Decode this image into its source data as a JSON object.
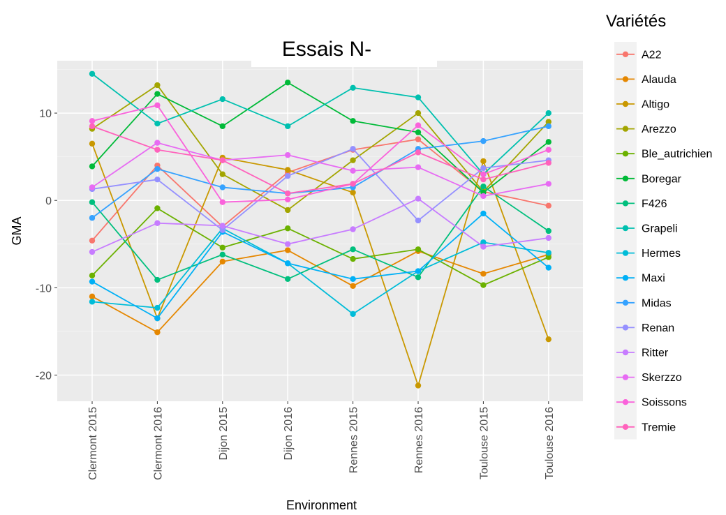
{
  "chart_data": {
    "type": "line",
    "title": "Essais N-",
    "xlabel": "Environment",
    "ylabel": "GMA",
    "legend_title": "Variétés",
    "legend_position": "right",
    "grid": true,
    "ylim": [
      -23,
      16
    ],
    "yticks": [
      -20,
      -10,
      0,
      10
    ],
    "categories": [
      "Clermont 2015",
      "Clermont 2016",
      "Dijon 2015",
      "Dijon 2016",
      "Rennes 2015",
      "Rennes 2016",
      "Toulouse 2015",
      "Toulouse 2016"
    ],
    "series": [
      {
        "name": "A22",
        "color": "#F8766D",
        "values": [
          -4.6,
          4.0,
          -3.0,
          3.2,
          5.8,
          7.0,
          1.0,
          -0.6
        ]
      },
      {
        "name": "Alauda",
        "color": "#E58700",
        "values": [
          -11.0,
          -15.1,
          -7.0,
          -5.7,
          -9.8,
          -5.8,
          -8.4,
          -6.2
        ]
      },
      {
        "name": "Altigo",
        "color": "#C99800",
        "values": [
          6.5,
          -13.5,
          4.9,
          3.5,
          0.9,
          -21.2,
          4.5,
          -15.9
        ]
      },
      {
        "name": "Arezzo",
        "color": "#A3A500",
        "values": [
          8.2,
          13.2,
          3.0,
          -1.1,
          4.6,
          10.0,
          1.0,
          9.0
        ]
      },
      {
        "name": "Ble_autrichien",
        "color": "#6BB100",
        "values": [
          -8.6,
          -0.9,
          -5.4,
          -3.2,
          -6.7,
          -5.6,
          -9.7,
          -6.5
        ]
      },
      {
        "name": "Boregar",
        "color": "#00BA38",
        "values": [
          3.9,
          12.2,
          8.5,
          13.5,
          9.1,
          7.8,
          0.9,
          6.7
        ]
      },
      {
        "name": "F426",
        "color": "#00BF7D",
        "values": [
          -0.2,
          -9.1,
          -6.2,
          -9.0,
          -5.6,
          -8.8,
          1.6,
          -3.5
        ]
      },
      {
        "name": "Grapeli",
        "color": "#00C0AF",
        "values": [
          14.5,
          8.8,
          11.6,
          8.5,
          12.9,
          11.8,
          3.0,
          10.0
        ]
      },
      {
        "name": "Hermes",
        "color": "#00BCD8",
        "values": [
          -11.6,
          -12.3,
          -3.2,
          -7.2,
          -13.0,
          -8.1,
          -4.8,
          -6.0
        ]
      },
      {
        "name": "Maxi",
        "color": "#00B0F6",
        "values": [
          -9.3,
          -13.5,
          -3.6,
          -7.2,
          -9.0,
          -8.1,
          -1.5,
          -7.7
        ]
      },
      {
        "name": "Midas",
        "color": "#35A2FF",
        "values": [
          -2.0,
          3.6,
          1.5,
          0.8,
          1.5,
          5.9,
          6.8,
          8.5
        ]
      },
      {
        "name": "Renan",
        "color": "#9590FF",
        "values": [
          1.3,
          2.4,
          -3.4,
          2.8,
          5.9,
          -2.3,
          3.7,
          4.6
        ]
      },
      {
        "name": "Ritter",
        "color": "#C77CFF",
        "values": [
          -5.9,
          -2.6,
          -2.9,
          -5.0,
          -3.3,
          0.2,
          -5.3,
          -4.3
        ]
      },
      {
        "name": "Skerzzo",
        "color": "#E76BF3",
        "values": [
          1.5,
          6.6,
          4.6,
          5.2,
          3.4,
          3.8,
          0.5,
          1.9
        ]
      },
      {
        "name": "Soissons",
        "color": "#FA62DB",
        "values": [
          9.1,
          10.9,
          -0.2,
          0.1,
          1.9,
          8.6,
          3.0,
          5.8
        ]
      },
      {
        "name": "Tremie",
        "color": "#FF62BC",
        "values": [
          8.5,
          5.8,
          4.6,
          0.8,
          1.9,
          5.5,
          2.4,
          4.3
        ]
      }
    ]
  }
}
